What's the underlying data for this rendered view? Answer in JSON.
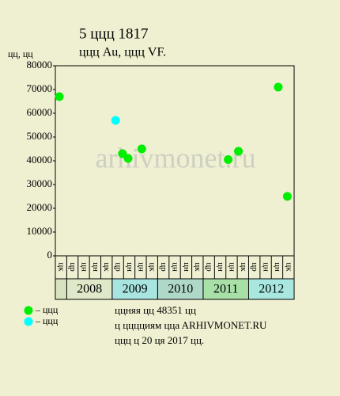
{
  "chart_data": {
    "type": "scatter",
    "title": "5 ццц 1817",
    "subtitle": "ццц Au, ццц VF.",
    "y_label": "цц, цц",
    "watermark": "arhivmonet.ru",
    "ylim": [
      0,
      80000
    ],
    "yticks": [
      0,
      10000,
      20000,
      30000,
      40000,
      50000,
      60000,
      70000,
      80000
    ],
    "xlim": [
      0,
      21
    ],
    "column_labels": [
      "цк",
      "цр",
      "цн",
      "цн",
      "цк",
      "цр",
      "цн",
      "цн",
      "цк",
      "цр",
      "цн",
      "цн",
      "цк",
      "цр",
      "цн",
      "цн",
      "цк",
      "цр",
      "цн",
      "цн",
      "цк"
    ],
    "years": [
      "2008",
      "2009",
      "2010",
      "2011",
      "2012"
    ],
    "year_colors": [
      "#dfe8c8",
      "#a8e4e0",
      "#b0d8c8",
      "#a8e0a8",
      "#a8e8e0"
    ],
    "series": [
      {
        "name": "– ццц",
        "color": "#00ee00",
        "x": [
          0.35,
          5.9,
          6.4,
          7.6,
          15.2,
          16.1,
          19.6,
          20.4
        ],
        "values": [
          67000,
          43000,
          41000,
          45000,
          40500,
          44000,
          71000,
          25000
        ]
      },
      {
        "name": "– ццц",
        "color": "#00ffff",
        "x": [
          5.3
        ],
        "values": [
          57000
        ]
      }
    ],
    "notes": [
      "ццняя цц 48351 цц",
      "ц цццциям ццa ARHIVMONET.RU",
      "ццц ц 20 ця 2017 цц."
    ]
  }
}
